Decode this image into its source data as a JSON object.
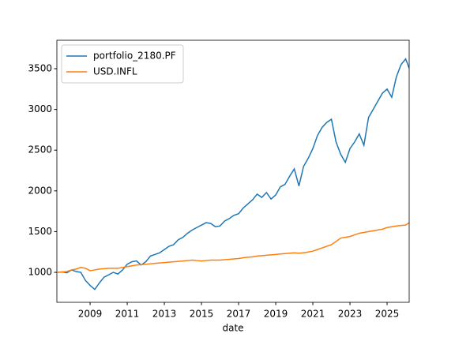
{
  "chart_data": {
    "type": "line",
    "xlabel": "date",
    "x": [
      2007.25,
      2007.5,
      2007.75,
      2008,
      2008.25,
      2008.5,
      2008.75,
      2009,
      2009.25,
      2009.5,
      2009.75,
      2010,
      2010.25,
      2010.5,
      2010.75,
      2011,
      2011.25,
      2011.5,
      2011.75,
      2012,
      2012.25,
      2012.5,
      2012.75,
      2013,
      2013.25,
      2013.5,
      2013.75,
      2014,
      2014.25,
      2014.5,
      2014.75,
      2015,
      2015.25,
      2015.5,
      2015.75,
      2016,
      2016.25,
      2016.5,
      2016.75,
      2017,
      2017.25,
      2017.5,
      2017.75,
      2018,
      2018.25,
      2018.5,
      2018.75,
      2019,
      2019.25,
      2019.5,
      2019.75,
      2020,
      2020.25,
      2020.5,
      2020.75,
      2021,
      2021.25,
      2021.5,
      2021.75,
      2022,
      2022.25,
      2022.5,
      2022.75,
      2023,
      2023.25,
      2023.5,
      2023.75,
      2024,
      2024.25,
      2024.5,
      2024.75,
      2025,
      2025.25,
      2025.5,
      2025.75,
      2026,
      2026.2
    ],
    "series": [
      {
        "name": "portfolio_2180.PF",
        "color": "#1f77b4",
        "values": [
          1000,
          1005,
          995,
          1030,
          1010,
          1000,
          900,
          840,
          790,
          870,
          940,
          970,
          1000,
          980,
          1030,
          1100,
          1130,
          1140,
          1090,
          1130,
          1200,
          1220,
          1240,
          1280,
          1320,
          1340,
          1400,
          1430,
          1480,
          1520,
          1550,
          1580,
          1610,
          1600,
          1560,
          1570,
          1630,
          1660,
          1700,
          1720,
          1790,
          1840,
          1890,
          1960,
          1920,
          1980,
          1900,
          1950,
          2050,
          2080,
          2180,
          2270,
          2060,
          2300,
          2400,
          2520,
          2680,
          2780,
          2840,
          2880,
          2600,
          2450,
          2350,
          2520,
          2600,
          2700,
          2560,
          2900,
          3000,
          3100,
          3200,
          3250,
          3150,
          3400,
          3550,
          3620,
          3500
        ]
      },
      {
        "name": "USD.INFL",
        "color": "#ff7f0e",
        "values": [
          1000,
          1005,
          1010,
          1030,
          1040,
          1060,
          1050,
          1020,
          1030,
          1040,
          1045,
          1050,
          1050,
          1050,
          1060,
          1070,
          1080,
          1090,
          1095,
          1100,
          1105,
          1110,
          1115,
          1120,
          1125,
          1130,
          1135,
          1140,
          1145,
          1150,
          1145,
          1140,
          1145,
          1150,
          1150,
          1150,
          1155,
          1160,
          1165,
          1170,
          1180,
          1185,
          1190,
          1200,
          1205,
          1210,
          1215,
          1220,
          1225,
          1230,
          1235,
          1240,
          1235,
          1240,
          1250,
          1260,
          1280,
          1300,
          1320,
          1340,
          1380,
          1420,
          1430,
          1440,
          1460,
          1480,
          1490,
          1500,
          1510,
          1520,
          1530,
          1550,
          1560,
          1570,
          1575,
          1580,
          1610
        ]
      }
    ],
    "xlim": [
      2007.21,
      2026.19
    ],
    "xticks": [
      2009,
      2011,
      2013,
      2015,
      2017,
      2019,
      2021,
      2023,
      2025
    ],
    "ylim": [
      632,
      3849
    ],
    "yticks": [
      1000,
      1500,
      2000,
      2500,
      3000,
      3500
    ],
    "legend": "upper left"
  }
}
